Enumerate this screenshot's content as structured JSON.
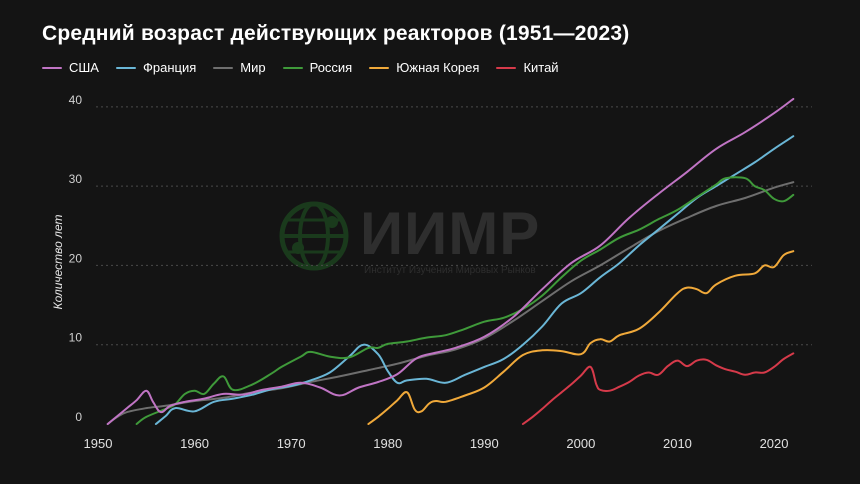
{
  "chart_data": {
    "type": "line",
    "title": "Средний возраст действующих реакторов (1951—2023)",
    "ylabel": "Количество лет",
    "xlabel": "",
    "xlim": [
      1950,
      2023
    ],
    "ylim": [
      0,
      42
    ],
    "x_ticks": [
      1950,
      1960,
      1970,
      1980,
      1990,
      2000,
      2010,
      2020
    ],
    "y_ticks": [
      0,
      10,
      20,
      30,
      40
    ],
    "grid": "horizontal-dotted",
    "legend_position": "top-left",
    "series": [
      {
        "name": "США",
        "color": "#c074c4",
        "points": [
          [
            1951,
            0
          ],
          [
            1952,
            1
          ],
          [
            1953,
            2
          ],
          [
            1954,
            3
          ],
          [
            1955,
            4.2
          ],
          [
            1955.7,
            2.8
          ],
          [
            1956.5,
            1.5
          ],
          [
            1957.5,
            2.3
          ],
          [
            1959,
            2.8
          ],
          [
            1961,
            3.2
          ],
          [
            1963,
            3.8
          ],
          [
            1965,
            3.7
          ],
          [
            1967,
            4.3
          ],
          [
            1969,
            4.7
          ],
          [
            1971,
            5.2
          ],
          [
            1973,
            4.6
          ],
          [
            1975,
            3.6
          ],
          [
            1977,
            4.6
          ],
          [
            1979,
            5.3
          ],
          [
            1981,
            6.3
          ],
          [
            1983,
            8.3
          ],
          [
            1985,
            9
          ],
          [
            1987,
            9.6
          ],
          [
            1990,
            11
          ],
          [
            1993,
            13.5
          ],
          [
            1996,
            17
          ],
          [
            1999,
            20.3
          ],
          [
            2002,
            22.5
          ],
          [
            2005,
            26
          ],
          [
            2008,
            29
          ],
          [
            2011,
            31.8
          ],
          [
            2014,
            34.7
          ],
          [
            2017,
            36.8
          ],
          [
            2020,
            39.2
          ],
          [
            2022,
            41
          ]
        ]
      },
      {
        "name": "Франция",
        "color": "#6ab6d6",
        "points": [
          [
            1956,
            0
          ],
          [
            1957,
            1
          ],
          [
            1958,
            2
          ],
          [
            1960,
            1.6
          ],
          [
            1962,
            2.8
          ],
          [
            1964,
            3.2
          ],
          [
            1966,
            3.7
          ],
          [
            1968,
            4.4
          ],
          [
            1970,
            4.8
          ],
          [
            1972,
            5.5
          ],
          [
            1974,
            6.5
          ],
          [
            1976,
            8.5
          ],
          [
            1977.5,
            10
          ],
          [
            1979,
            8.8
          ],
          [
            1980,
            6.7
          ],
          [
            1981,
            5.2
          ],
          [
            1982,
            5.5
          ],
          [
            1984,
            5.7
          ],
          [
            1986,
            5.2
          ],
          [
            1988,
            6.2
          ],
          [
            1990,
            7.2
          ],
          [
            1992,
            8.2
          ],
          [
            1994,
            10
          ],
          [
            1996,
            12.3
          ],
          [
            1998,
            15.2
          ],
          [
            2000,
            16.5
          ],
          [
            2002,
            18.5
          ],
          [
            2004,
            20.3
          ],
          [
            2006,
            22.5
          ],
          [
            2008,
            24.5
          ],
          [
            2010,
            26.5
          ],
          [
            2012,
            28.5
          ],
          [
            2014,
            30
          ],
          [
            2016,
            31.5
          ],
          [
            2018,
            33
          ],
          [
            2020,
            34.7
          ],
          [
            2022,
            36.3
          ]
        ]
      },
      {
        "name": "Мир",
        "color": "#6e6e6e",
        "points": [
          [
            1951,
            0
          ],
          [
            1952,
            0.9
          ],
          [
            1953,
            1.5
          ],
          [
            1955,
            2
          ],
          [
            1957,
            2.3
          ],
          [
            1960,
            2.9
          ],
          [
            1963,
            3.3
          ],
          [
            1966,
            4
          ],
          [
            1969,
            4.5
          ],
          [
            1972,
            5.3
          ],
          [
            1975,
            6
          ],
          [
            1978,
            6.8
          ],
          [
            1981,
            7.6
          ],
          [
            1984,
            8.6
          ],
          [
            1987,
            9.4
          ],
          [
            1990,
            10.8
          ],
          [
            1993,
            13
          ],
          [
            1996,
            15.5
          ],
          [
            1999,
            18
          ],
          [
            2002,
            20
          ],
          [
            2005,
            22.2
          ],
          [
            2008,
            24.3
          ],
          [
            2011,
            26
          ],
          [
            2014,
            27.5
          ],
          [
            2017,
            28.5
          ],
          [
            2020,
            29.8
          ],
          [
            2022,
            30.5
          ]
        ]
      },
      {
        "name": "Россия",
        "color": "#3f9a3a",
        "points": [
          [
            1954,
            0
          ],
          [
            1955,
            0.9
          ],
          [
            1957,
            1.9
          ],
          [
            1958,
            2.5
          ],
          [
            1959,
            3.8
          ],
          [
            1960,
            4.2
          ],
          [
            1961,
            3.8
          ],
          [
            1962,
            5.1
          ],
          [
            1963,
            6
          ],
          [
            1964,
            4.3
          ],
          [
            1966,
            5
          ],
          [
            1968,
            6.4
          ],
          [
            1969,
            7.2
          ],
          [
            1971,
            8.5
          ],
          [
            1972,
            9.1
          ],
          [
            1974,
            8.5
          ],
          [
            1976,
            8.4
          ],
          [
            1978,
            9.6
          ],
          [
            1979,
            9.6
          ],
          [
            1980,
            10.1
          ],
          [
            1982,
            10.4
          ],
          [
            1984,
            10.9
          ],
          [
            1986,
            11.2
          ],
          [
            1988,
            12
          ],
          [
            1990,
            12.9
          ],
          [
            1992,
            13.4
          ],
          [
            1994,
            14.5
          ],
          [
            1996,
            16.2
          ],
          [
            1998,
            18.5
          ],
          [
            2000,
            20.6
          ],
          [
            2002,
            22
          ],
          [
            2004,
            23.5
          ],
          [
            2006,
            24.5
          ],
          [
            2008,
            25.8
          ],
          [
            2010,
            27
          ],
          [
            2012,
            28.6
          ],
          [
            2014,
            30.2
          ],
          [
            2015,
            31
          ],
          [
            2017,
            31
          ],
          [
            2018,
            30
          ],
          [
            2019,
            29.5
          ],
          [
            2020,
            28.4
          ],
          [
            2021,
            28.1
          ],
          [
            2022,
            28.9
          ]
        ]
      },
      {
        "name": "Южная Корея",
        "color": "#f0a93a",
        "points": [
          [
            1978,
            0
          ],
          [
            1979,
            0.9
          ],
          [
            1980,
            1.9
          ],
          [
            1981,
            3
          ],
          [
            1982,
            4
          ],
          [
            1982.8,
            1.8
          ],
          [
            1983.5,
            1.6
          ],
          [
            1984.3,
            2.6
          ],
          [
            1985,
            2.9
          ],
          [
            1986,
            2.8
          ],
          [
            1988,
            3.6
          ],
          [
            1990,
            4.6
          ],
          [
            1992,
            6.6
          ],
          [
            1994,
            8.7
          ],
          [
            1996,
            9.3
          ],
          [
            1998,
            9.2
          ],
          [
            2000,
            8.8
          ],
          [
            2001,
            10.2
          ],
          [
            2002,
            10.7
          ],
          [
            2003,
            10.4
          ],
          [
            2004,
            11.2
          ],
          [
            2006,
            12
          ],
          [
            2008,
            14
          ],
          [
            2010,
            16.5
          ],
          [
            2011,
            17.2
          ],
          [
            2012,
            17
          ],
          [
            2013,
            16.5
          ],
          [
            2014,
            17.6
          ],
          [
            2016,
            18.7
          ],
          [
            2018,
            19
          ],
          [
            2019,
            20
          ],
          [
            2020,
            19.8
          ],
          [
            2021,
            21.3
          ],
          [
            2022,
            21.8
          ]
        ]
      },
      {
        "name": "Китай",
        "color": "#d63a4a",
        "points": [
          [
            1994,
            0
          ],
          [
            1995,
            0.9
          ],
          [
            1996,
            1.9
          ],
          [
            1997,
            3
          ],
          [
            1998,
            4
          ],
          [
            1999,
            5
          ],
          [
            2000,
            6.1
          ],
          [
            2001,
            7.2
          ],
          [
            2001.6,
            5
          ],
          [
            2002,
            4.3
          ],
          [
            2003,
            4.2
          ],
          [
            2004,
            4.7
          ],
          [
            2005,
            5.3
          ],
          [
            2006,
            6.1
          ],
          [
            2007,
            6.5
          ],
          [
            2008,
            6.2
          ],
          [
            2009,
            7.3
          ],
          [
            2010,
            8
          ],
          [
            2011,
            7.3
          ],
          [
            2012,
            8
          ],
          [
            2013,
            8.1
          ],
          [
            2014,
            7.4
          ],
          [
            2015,
            6.9
          ],
          [
            2016,
            6.6
          ],
          [
            2017,
            6.2
          ],
          [
            2018,
            6.5
          ],
          [
            2019,
            6.5
          ],
          [
            2020,
            7.2
          ],
          [
            2021,
            8.2
          ],
          [
            2022,
            8.9
          ]
        ]
      }
    ]
  },
  "watermark": {
    "logo": "globe-icon",
    "name": "ИИМР",
    "subtitle": "Институт Изучения Мировых Рынков"
  }
}
